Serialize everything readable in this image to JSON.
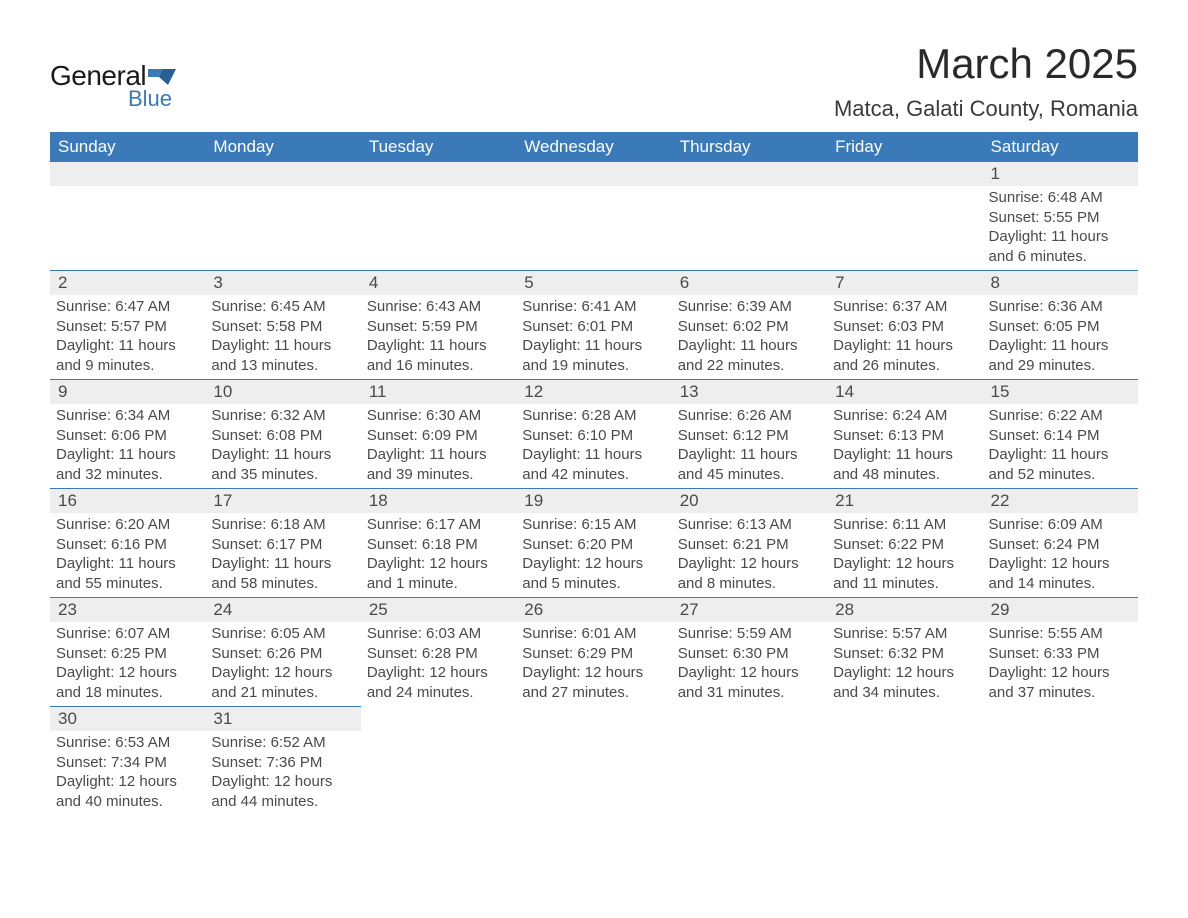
{
  "logo": {
    "word1": "General",
    "word2": "Blue"
  },
  "title": "March 2025",
  "location": "Matca, Galati County, Romania",
  "colors": {
    "header_bg": "#3b7ab8",
    "header_text": "#ffffff",
    "daynum_bg": "#eeeeee",
    "text": "#4a4a4a",
    "rule": "#3b7ab8",
    "page_bg": "#ffffff"
  },
  "typography": {
    "title_fontsize": 42,
    "location_fontsize": 22,
    "dayheader_fontsize": 17,
    "daynum_fontsize": 17,
    "detail_fontsize": 15
  },
  "day_headers": [
    "Sunday",
    "Monday",
    "Tuesday",
    "Wednesday",
    "Thursday",
    "Friday",
    "Saturday"
  ],
  "weeks": [
    [
      null,
      null,
      null,
      null,
      null,
      null,
      {
        "n": "1",
        "sunrise": "6:48 AM",
        "sunset": "5:55 PM",
        "dl_h": "11",
        "dl_m": "6"
      }
    ],
    [
      {
        "n": "2",
        "sunrise": "6:47 AM",
        "sunset": "5:57 PM",
        "dl_h": "11",
        "dl_m": "9"
      },
      {
        "n": "3",
        "sunrise": "6:45 AM",
        "sunset": "5:58 PM",
        "dl_h": "11",
        "dl_m": "13"
      },
      {
        "n": "4",
        "sunrise": "6:43 AM",
        "sunset": "5:59 PM",
        "dl_h": "11",
        "dl_m": "16"
      },
      {
        "n": "5",
        "sunrise": "6:41 AM",
        "sunset": "6:01 PM",
        "dl_h": "11",
        "dl_m": "19"
      },
      {
        "n": "6",
        "sunrise": "6:39 AM",
        "sunset": "6:02 PM",
        "dl_h": "11",
        "dl_m": "22"
      },
      {
        "n": "7",
        "sunrise": "6:37 AM",
        "sunset": "6:03 PM",
        "dl_h": "11",
        "dl_m": "26"
      },
      {
        "n": "8",
        "sunrise": "6:36 AM",
        "sunset": "6:05 PM",
        "dl_h": "11",
        "dl_m": "29"
      }
    ],
    [
      {
        "n": "9",
        "sunrise": "6:34 AM",
        "sunset": "6:06 PM",
        "dl_h": "11",
        "dl_m": "32"
      },
      {
        "n": "10",
        "sunrise": "6:32 AM",
        "sunset": "6:08 PM",
        "dl_h": "11",
        "dl_m": "35"
      },
      {
        "n": "11",
        "sunrise": "6:30 AM",
        "sunset": "6:09 PM",
        "dl_h": "11",
        "dl_m": "39"
      },
      {
        "n": "12",
        "sunrise": "6:28 AM",
        "sunset": "6:10 PM",
        "dl_h": "11",
        "dl_m": "42"
      },
      {
        "n": "13",
        "sunrise": "6:26 AM",
        "sunset": "6:12 PM",
        "dl_h": "11",
        "dl_m": "45"
      },
      {
        "n": "14",
        "sunrise": "6:24 AM",
        "sunset": "6:13 PM",
        "dl_h": "11",
        "dl_m": "48"
      },
      {
        "n": "15",
        "sunrise": "6:22 AM",
        "sunset": "6:14 PM",
        "dl_h": "11",
        "dl_m": "52"
      }
    ],
    [
      {
        "n": "16",
        "sunrise": "6:20 AM",
        "sunset": "6:16 PM",
        "dl_h": "11",
        "dl_m": "55"
      },
      {
        "n": "17",
        "sunrise": "6:18 AM",
        "sunset": "6:17 PM",
        "dl_h": "11",
        "dl_m": "58"
      },
      {
        "n": "18",
        "sunrise": "6:17 AM",
        "sunset": "6:18 PM",
        "dl_h": "12",
        "dl_m": "1"
      },
      {
        "n": "19",
        "sunrise": "6:15 AM",
        "sunset": "6:20 PM",
        "dl_h": "12",
        "dl_m": "5"
      },
      {
        "n": "20",
        "sunrise": "6:13 AM",
        "sunset": "6:21 PM",
        "dl_h": "12",
        "dl_m": "8"
      },
      {
        "n": "21",
        "sunrise": "6:11 AM",
        "sunset": "6:22 PM",
        "dl_h": "12",
        "dl_m": "11"
      },
      {
        "n": "22",
        "sunrise": "6:09 AM",
        "sunset": "6:24 PM",
        "dl_h": "12",
        "dl_m": "14"
      }
    ],
    [
      {
        "n": "23",
        "sunrise": "6:07 AM",
        "sunset": "6:25 PM",
        "dl_h": "12",
        "dl_m": "18"
      },
      {
        "n": "24",
        "sunrise": "6:05 AM",
        "sunset": "6:26 PM",
        "dl_h": "12",
        "dl_m": "21"
      },
      {
        "n": "25",
        "sunrise": "6:03 AM",
        "sunset": "6:28 PM",
        "dl_h": "12",
        "dl_m": "24"
      },
      {
        "n": "26",
        "sunrise": "6:01 AM",
        "sunset": "6:29 PM",
        "dl_h": "12",
        "dl_m": "27"
      },
      {
        "n": "27",
        "sunrise": "5:59 AM",
        "sunset": "6:30 PM",
        "dl_h": "12",
        "dl_m": "31"
      },
      {
        "n": "28",
        "sunrise": "5:57 AM",
        "sunset": "6:32 PM",
        "dl_h": "12",
        "dl_m": "34"
      },
      {
        "n": "29",
        "sunrise": "5:55 AM",
        "sunset": "6:33 PM",
        "dl_h": "12",
        "dl_m": "37"
      }
    ],
    [
      {
        "n": "30",
        "sunrise": "6:53 AM",
        "sunset": "7:34 PM",
        "dl_h": "12",
        "dl_m": "40"
      },
      {
        "n": "31",
        "sunrise": "6:52 AM",
        "sunset": "7:36 PM",
        "dl_h": "12",
        "dl_m": "44"
      },
      null,
      null,
      null,
      null,
      null
    ]
  ],
  "labels": {
    "sunrise": "Sunrise: ",
    "sunset": "Sunset: ",
    "daylight": "Daylight: ",
    "hours": " hours",
    "and": "and ",
    "minute_singular": " minute.",
    "minute_plural": " minutes."
  }
}
